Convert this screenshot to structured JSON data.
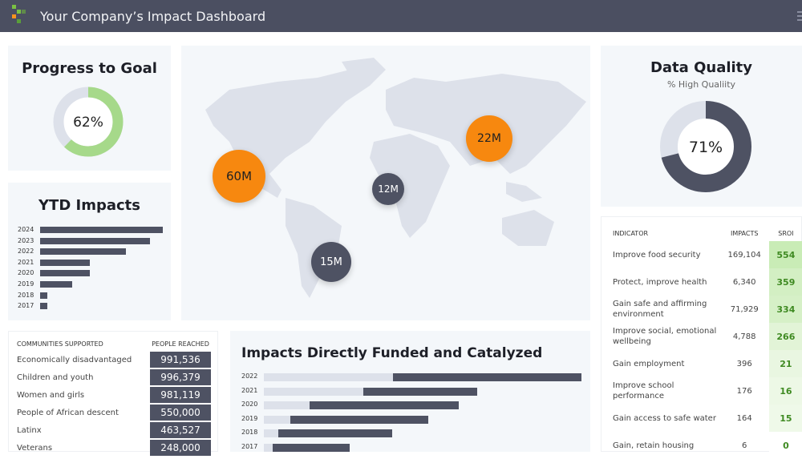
{
  "header": {
    "title": "Your Company’s Impact Dashboard",
    "logo_colors": [
      "#7ac143",
      "#f7941d",
      "#5a9e3a"
    ]
  },
  "progress": {
    "title": "Progress to Goal",
    "value_label": "62%",
    "percent": 62,
    "color": "#a6d98a",
    "track": "#dde1ea"
  },
  "ytd": {
    "title": "YTD Impacts",
    "chart_data": {
      "type": "bar",
      "orientation": "horizontal",
      "categories": [
        "2024",
        "2023",
        "2022",
        "2021",
        "2020",
        "2019",
        "2018",
        "2017"
      ],
      "values": [
        153,
        137,
        107,
        62,
        62,
        40,
        9,
        9
      ],
      "xlim": [
        0,
        153
      ]
    }
  },
  "map": {
    "bubbles": [
      {
        "label": "60M",
        "color": "#f7880f",
        "region": "North America"
      },
      {
        "label": "22M",
        "color": "#f7880f",
        "region": "East Asia"
      },
      {
        "label": "12M",
        "color": "#4e5263",
        "region": "Africa"
      },
      {
        "label": "15M",
        "color": "#4e5263",
        "region": "South America"
      }
    ]
  },
  "quality": {
    "title": "Data Quality",
    "subtitle": "% High Qualiity",
    "value_label": "71%",
    "percent": 71,
    "color": "#4e5263"
  },
  "indicators": {
    "headers": [
      "INDICATOR",
      "IMPACTS",
      "SROI"
    ],
    "rows": [
      [
        "Improve food security",
        "169,104",
        "554"
      ],
      [
        "Protect, improve health",
        "6,340",
        "359"
      ],
      [
        "Gain safe and affirming environment",
        "71,929",
        "334"
      ],
      [
        "Improve social, emotional wellbeing",
        "4,788",
        "266"
      ],
      [
        "Gain employment",
        "396",
        "21"
      ],
      [
        "Improve school performance",
        "176",
        "16"
      ],
      [
        "Gain access to safe water",
        "164",
        "15"
      ],
      [
        "Gain, retain housing",
        "6",
        "0"
      ]
    ]
  },
  "communities": {
    "headers": [
      "COMMUNITIES SUPPORTED",
      "PEOPLE REACHED"
    ],
    "rows": [
      [
        "Economically disadvantaged",
        "991,536"
      ],
      [
        "Children and youth",
        "996,379"
      ],
      [
        "Women and girls",
        "981,119"
      ],
      [
        "People of African descent",
        "550,000"
      ],
      [
        "Latinx",
        "463,527"
      ],
      [
        "Veterans",
        "248,000"
      ]
    ]
  },
  "funded": {
    "title": "Impacts Directly Funded and Catalyzed",
    "chart_data": {
      "type": "bar",
      "orientation": "horizontal",
      "stacked": true,
      "categories": [
        "2022",
        "2021",
        "2020",
        "2019",
        "2018",
        "2017"
      ],
      "series": [
        {
          "values": [
            40.7,
            31.3,
            14.4,
            8.4,
            4.5,
            2.8
          ],
          "color": "#dde1ea"
        },
        {
          "values": [
            59.3,
            35.9,
            47.0,
            43.4,
            35.9,
            24.2
          ],
          "color": "#4e5263"
        }
      ],
      "xlim": [
        0,
        100
      ]
    }
  }
}
